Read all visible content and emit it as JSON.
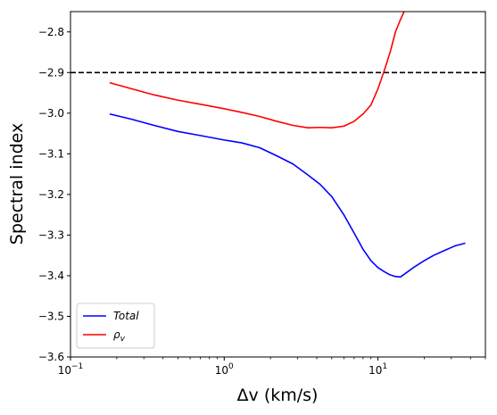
{
  "chart_data": {
    "type": "line",
    "title": "",
    "xlabel": "Δv (km/s)",
    "ylabel": "Spectral index",
    "xscale": "log",
    "xlim": [
      0.1,
      50
    ],
    "ylim": [
      -3.6,
      -2.75
    ],
    "x_ticks": [
      {
        "value": 0.1,
        "base": "10",
        "exp": "−1"
      },
      {
        "value": 1,
        "base": "10",
        "exp": "0"
      },
      {
        "value": 10,
        "base": "10",
        "exp": "1"
      }
    ],
    "y_ticks": [
      {
        "value": -3.6,
        "label": "−3.6"
      },
      {
        "value": -3.5,
        "label": "−3.5"
      },
      {
        "value": -3.4,
        "label": "−3.4"
      },
      {
        "value": -3.3,
        "label": "−3.3"
      },
      {
        "value": -3.2,
        "label": "−3.2"
      },
      {
        "value": -3.1,
        "label": "−3.1"
      },
      {
        "value": -3.0,
        "label": "−3.0"
      },
      {
        "value": -2.9,
        "label": "−2.9"
      },
      {
        "value": -2.8,
        "label": "−2.8"
      }
    ],
    "grid": false,
    "legend_position": "lower-left",
    "reference_line": {
      "y": -2.9,
      "style": "dashed",
      "color": "#000000"
    },
    "series": [
      {
        "name": "Total",
        "color": "#0000ff",
        "x": [
          0.18,
          0.25,
          0.35,
          0.5,
          0.7,
          1.0,
          1.3,
          1.7,
          2.2,
          2.8,
          3.5,
          4.2,
          5.0,
          6.0,
          7.0,
          8.0,
          9.0,
          10.0,
          11.0,
          12.0,
          13.0,
          14.0,
          15.0,
          17.0,
          20.0,
          23.0,
          27.0,
          32.0,
          37.0
        ],
        "y": [
          -3.002,
          -3.015,
          -3.03,
          -3.045,
          -3.055,
          -3.066,
          -3.073,
          -3.085,
          -3.105,
          -3.125,
          -3.152,
          -3.175,
          -3.205,
          -3.25,
          -3.295,
          -3.335,
          -3.363,
          -3.38,
          -3.39,
          -3.398,
          -3.402,
          -3.403,
          -3.395,
          -3.38,
          -3.363,
          -3.35,
          -3.338,
          -3.326,
          -3.32
        ]
      },
      {
        "name": "ρv",
        "color": "#ff0000",
        "x": [
          0.18,
          0.25,
          0.35,
          0.5,
          0.7,
          1.0,
          1.3,
          1.7,
          2.2,
          2.8,
          3.5,
          4.2,
          5.0,
          6.0,
          7.0,
          8.0,
          9.0,
          10.0,
          11.0,
          12.0,
          13.0,
          14.0,
          14.8
        ],
        "y": [
          -2.925,
          -2.94,
          -2.955,
          -2.968,
          -2.978,
          -2.989,
          -2.998,
          -3.008,
          -3.02,
          -3.03,
          -3.036,
          -3.035,
          -3.036,
          -3.032,
          -3.02,
          -3.002,
          -2.98,
          -2.94,
          -2.895,
          -2.85,
          -2.8,
          -2.77,
          -2.75
        ]
      }
    ]
  }
}
